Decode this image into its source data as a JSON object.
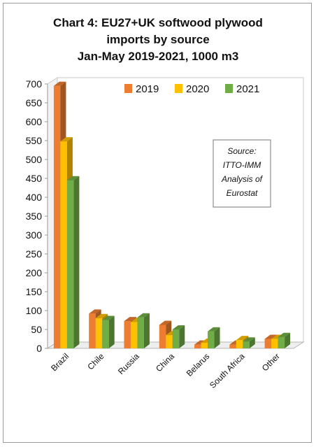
{
  "title_lines": [
    "Chart 4: EU27+UK softwood plywood",
    "imports by source",
    "Jan-May 2019-2021, 1000 m3"
  ],
  "source_note": [
    "Source:",
    "ITTO-IMM",
    "Analysis of",
    "Eurostat"
  ],
  "chart_data": {
    "type": "bar",
    "title": "Chart 4: EU27+UK softwood plywood imports by source Jan-May 2019-2021, 1000 m3",
    "categories": [
      "Brazil",
      "Chile",
      "Russia",
      "China",
      "Belarus",
      "South Africa",
      "Other"
    ],
    "series": [
      {
        "name": "2019",
        "color": "#ed7d31",
        "values": [
          695,
          92,
          72,
          62,
          10,
          10,
          25
        ]
      },
      {
        "name": "2020",
        "color": "#ffc000",
        "values": [
          548,
          80,
          70,
          35,
          15,
          22,
          25
        ]
      },
      {
        "name": "2021",
        "color": "#70ad47",
        "values": [
          445,
          75,
          82,
          50,
          45,
          18,
          30
        ]
      }
    ],
    "ylim": [
      0,
      700
    ],
    "yticks": [
      0,
      50,
      100,
      150,
      200,
      250,
      300,
      350,
      400,
      450,
      500,
      550,
      600,
      650,
      700
    ],
    "grid": false,
    "legend_position": "top",
    "three_d": true
  }
}
